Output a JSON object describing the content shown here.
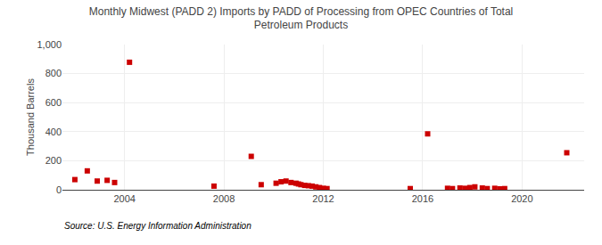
{
  "chart_data": {
    "type": "scatter",
    "title": "Monthly Midwest (PADD 2) Imports by PADD of Processing from OPEC Countries of Total\nPetroleum Products",
    "ylabel": "Thousand Barrels",
    "annotations": [
      "Source: U.S. Energy Information Administration"
    ],
    "x": [
      2002.0,
      2002.5,
      2002.9,
      2003.3,
      2003.6,
      2004.2,
      2007.6,
      2009.1,
      2009.5,
      2010.1,
      2010.3,
      2010.5,
      2010.7,
      2010.9,
      2011.0,
      2011.1,
      2011.25,
      2011.4,
      2011.55,
      2011.7,
      2011.85,
      2012.0,
      2012.15,
      2015.5,
      2016.2,
      2017.0,
      2017.2,
      2017.5,
      2017.7,
      2017.9,
      2018.1,
      2018.4,
      2018.6,
      2018.9,
      2019.1,
      2019.3,
      2021.8
    ],
    "values": [
      70,
      130,
      60,
      65,
      50,
      878,
      25,
      230,
      35,
      45,
      55,
      60,
      50,
      45,
      40,
      35,
      30,
      28,
      25,
      20,
      15,
      10,
      8,
      8,
      385,
      10,
      8,
      12,
      10,
      15,
      20,
      12,
      8,
      10,
      6,
      8,
      255
    ],
    "color": "#cc0000",
    "marker": "square",
    "xlim": [
      2001.5,
      2022.5
    ],
    "ylim": [
      0,
      1000
    ],
    "xticks": [
      2004,
      2008,
      2012,
      2016,
      2020
    ],
    "yticks": [
      0,
      200,
      400,
      600,
      800,
      {
        "value": 1000,
        "label": "1,000"
      }
    ],
    "grid": true
  }
}
